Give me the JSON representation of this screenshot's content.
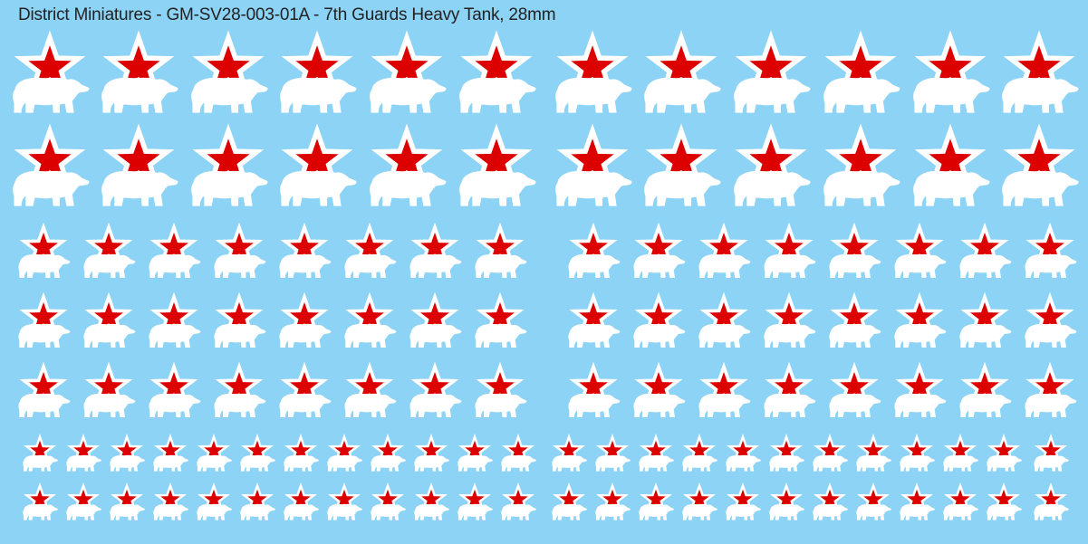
{
  "title": "District Miniatures - GM-SV28-003-01A - 7th Guards Heavy Tank, 28mm",
  "colors": {
    "background": "#8dd3f5",
    "star": "#dd0000",
    "outline": "#ffffff",
    "bear": "#ffffff"
  },
  "emblem": {
    "icon": "red-star-over-polar-bear-icon"
  },
  "rows": [
    {
      "size": "large",
      "count": 12
    },
    {
      "size": "large",
      "count": 12
    },
    {
      "size": "medium",
      "count": 16
    },
    {
      "size": "medium",
      "count": 16
    },
    {
      "size": "medium",
      "count": 16
    },
    {
      "size": "small",
      "count": 24
    },
    {
      "size": "small",
      "count": 24
    }
  ]
}
